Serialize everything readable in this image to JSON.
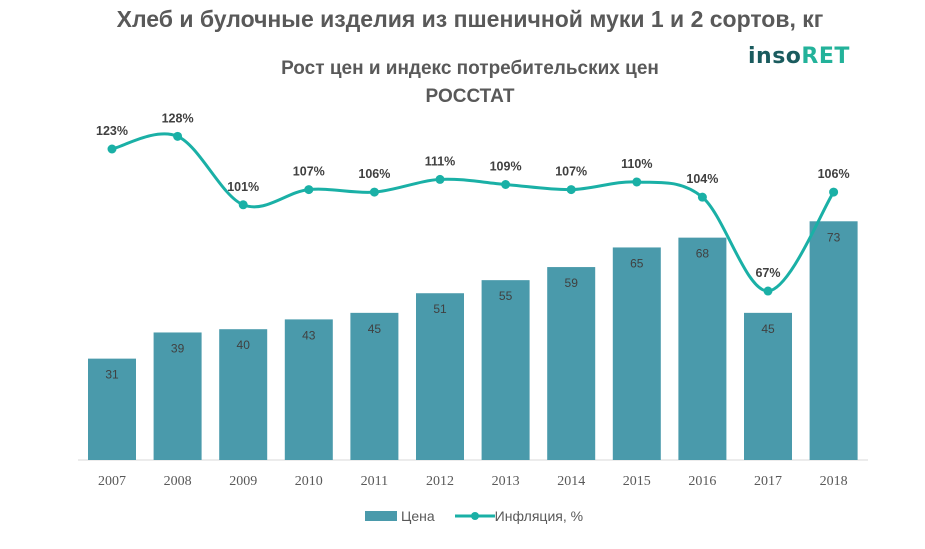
{
  "chart_data": {
    "type": "bar+line",
    "title": "Хлеб и булочные изделия из пшеничной муки 1 и 2 сортов, кг",
    "subtitle": "Рост цен и индекс потребительских цен",
    "source": "РОССТАТ",
    "logo": {
      "part1": "inso",
      "part2": "RET"
    },
    "categories": [
      "2007",
      "2008",
      "2009",
      "2010",
      "2011",
      "2012",
      "2013",
      "2014",
      "2015",
      "2016",
      "2017",
      "2018"
    ],
    "series": [
      {
        "name": "Цена",
        "type": "bar",
        "color": "#4a9aab",
        "values": [
          31,
          39,
          40,
          43,
          45,
          51,
          55,
          59,
          65,
          68,
          45,
          73
        ]
      },
      {
        "name": "Инфляция, %",
        "type": "line",
        "color": "#1ab0a6",
        "values": [
          123,
          128,
          101,
          107,
          106,
          111,
          109,
          107,
          110,
          104,
          67,
          106
        ],
        "labels": [
          "123%",
          "128%",
          "101%",
          "107%",
          "106%",
          "111%",
          "109%",
          "107%",
          "110%",
          "104%",
          "67%",
          "106%"
        ]
      }
    ],
    "legend": "bottom",
    "grid": false
  }
}
